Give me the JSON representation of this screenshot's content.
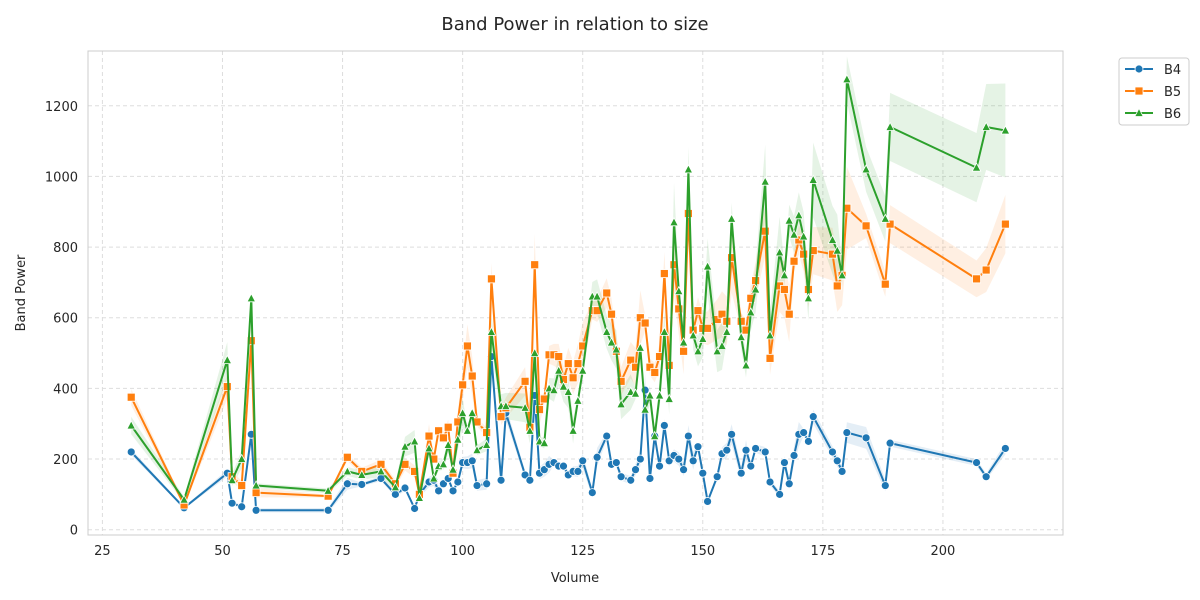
{
  "chart_data": {
    "type": "line",
    "title": "Band Power in relation to size",
    "xlabel": "Volume",
    "ylabel": "Band Power",
    "xlim": [
      22,
      225
    ],
    "ylim": [
      -15,
      1355
    ],
    "xticks": [
      25,
      50,
      75,
      100,
      125,
      150,
      175,
      200
    ],
    "yticks": [
      0,
      200,
      400,
      600,
      800,
      1000,
      1200
    ],
    "grid": true,
    "legend_position": "outside-top-right",
    "x": [
      31,
      42,
      51,
      52,
      54,
      56,
      57,
      72,
      76,
      79,
      83,
      86,
      88,
      90,
      91,
      93,
      94,
      95,
      96,
      97,
      98,
      99,
      100,
      101,
      102,
      103,
      105,
      106,
      108,
      109,
      113,
      114,
      115,
      116,
      117,
      118,
      119,
      120,
      121,
      122,
      123,
      124,
      125,
      127,
      128,
      130,
      131,
      132,
      133,
      135,
      136,
      137,
      138,
      139,
      140,
      141,
      142,
      143,
      144,
      145,
      146,
      147,
      148,
      149,
      150,
      151,
      153,
      154,
      155,
      156,
      158,
      159,
      160,
      161,
      163,
      164,
      166,
      167,
      168,
      169,
      170,
      171,
      172,
      173,
      177,
      178,
      179,
      180,
      184,
      188,
      189,
      207,
      209,
      213
    ],
    "series": [
      {
        "name": "B4",
        "color": "#1f77b4",
        "marker": "circle",
        "values": [
          220,
          62,
          160,
          75,
          65,
          270,
          55,
          55,
          130,
          128,
          145,
          100,
          118,
          60,
          100,
          135,
          140,
          110,
          130,
          145,
          110,
          135,
          190,
          190,
          195,
          125,
          130,
          490,
          140,
          330,
          155,
          140,
          380,
          160,
          170,
          185,
          190,
          180,
          180,
          155,
          165,
          165,
          195,
          105,
          205,
          265,
          185,
          190,
          150,
          140,
          170,
          200,
          395,
          145,
          265,
          180,
          295,
          195,
          210,
          200,
          170,
          265,
          195,
          235,
          160,
          80,
          150,
          215,
          225,
          270,
          160,
          225,
          180,
          230,
          220,
          135,
          100,
          190,
          130,
          210,
          270,
          275,
          250,
          320,
          220,
          195,
          165,
          275,
          260,
          125,
          245,
          190,
          150,
          230
        ]
      },
      {
        "name": "B5",
        "color": "#ff7f0e",
        "marker": "square",
        "values": [
          375,
          70,
          405,
          150,
          125,
          535,
          105,
          95,
          205,
          165,
          185,
          130,
          185,
          165,
          100,
          265,
          200,
          280,
          260,
          290,
          160,
          305,
          410,
          520,
          435,
          305,
          275,
          710,
          320,
          345,
          420,
          290,
          750,
          340,
          370,
          495,
          495,
          490,
          425,
          470,
          430,
          470,
          520,
          620,
          620,
          670,
          610,
          505,
          420,
          480,
          460,
          600,
          585,
          460,
          445,
          490,
          725,
          465,
          750,
          625,
          505,
          895,
          565,
          620,
          570,
          570,
          595,
          610,
          590,
          770,
          590,
          565,
          655,
          705,
          845,
          485,
          690,
          680,
          610,
          760,
          820,
          780,
          680,
          790,
          780,
          690,
          720,
          910,
          860,
          695,
          865,
          710,
          735,
          865
        ]
      },
      {
        "name": "B6",
        "color": "#2ca02c",
        "marker": "triangle",
        "values": [
          295,
          85,
          480,
          140,
          200,
          655,
          125,
          110,
          165,
          155,
          165,
          120,
          235,
          250,
          90,
          230,
          145,
          180,
          185,
          240,
          170,
          255,
          330,
          280,
          330,
          225,
          240,
          560,
          350,
          350,
          345,
          280,
          500,
          250,
          245,
          400,
          395,
          450,
          405,
          390,
          280,
          365,
          450,
          660,
          660,
          560,
          530,
          510,
          355,
          390,
          385,
          515,
          340,
          380,
          265,
          380,
          560,
          370,
          870,
          675,
          530,
          1020,
          550,
          505,
          540,
          745,
          505,
          520,
          560,
          880,
          545,
          465,
          615,
          680,
          985,
          550,
          785,
          720,
          875,
          835,
          890,
          830,
          655,
          990,
          820,
          790,
          720,
          1275,
          1020,
          880,
          1140,
          1025,
          1140,
          1130
        ]
      }
    ]
  }
}
